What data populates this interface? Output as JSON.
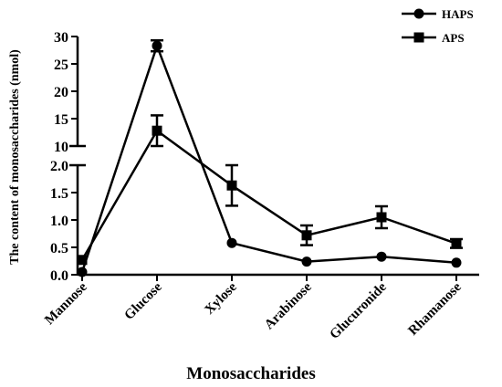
{
  "chart_data": {
    "type": "line",
    "xlabel": "Monosaccharides",
    "ylabel": "The content of monosaccharides (nmol)",
    "categories": [
      "Mannose",
      "Glucose",
      "Xylose",
      "Arabinose",
      "Glucuronide",
      "Rhamanose"
    ],
    "y_axis_break": {
      "lower_segment": {
        "range": [
          0,
          2.0
        ],
        "ticks": [
          "0.0",
          "0.5",
          "1.0",
          "1.5",
          "2.0"
        ]
      },
      "upper_segment": {
        "range": [
          10,
          30
        ],
        "ticks": [
          "10",
          "15",
          "20",
          "25",
          "30"
        ]
      }
    },
    "series": [
      {
        "name": "HAPS",
        "marker": "circle",
        "values": [
          0.05,
          28.3,
          0.58,
          0.24,
          0.33,
          0.22
        ],
        "errors": [
          0,
          1.0,
          0,
          0,
          0,
          0
        ]
      },
      {
        "name": "APS",
        "marker": "square",
        "values": [
          0.27,
          12.8,
          1.63,
          0.72,
          1.05,
          0.57
        ],
        "errors": [
          0,
          2.8,
          0.37,
          0.18,
          0.2,
          0.08
        ]
      }
    ],
    "legend": {
      "placement": "top-right"
    },
    "grid": false
  }
}
